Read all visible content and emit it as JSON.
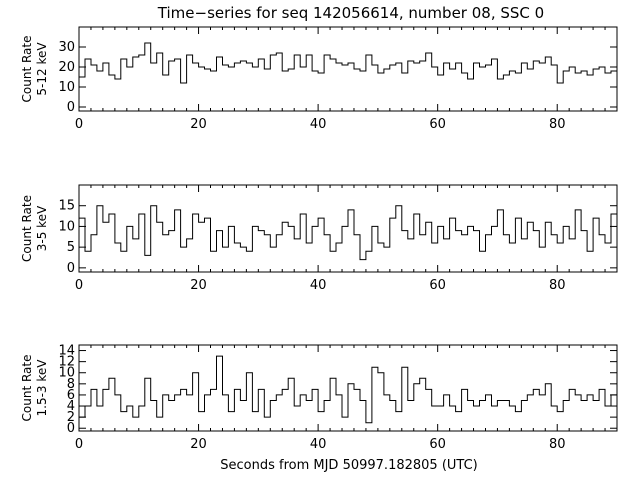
{
  "title": "Time−series for seq 142056614, number 08, SSC 0",
  "xlabel": "Seconds from MJD 50997.182805 (UTC)",
  "chart_data": [
    {
      "type": "line",
      "step": true,
      "title": "Time−series for seq 142056614, number 08, SSC 0",
      "ylabel_line1": "Count Rate",
      "ylabel_line2": "5-12 keV",
      "xlabel": "",
      "xlim": [
        0,
        90
      ],
      "ylim": [
        -2,
        40
      ],
      "xticks": [
        0,
        20,
        40,
        60,
        80
      ],
      "xtick_labels": [
        "0",
        "20",
        "40",
        "60",
        "80"
      ],
      "yticks": [
        0,
        10,
        20,
        30
      ],
      "ytick_labels": [
        "0",
        "10",
        "20",
        "30"
      ],
      "x": [
        0,
        1,
        2,
        3,
        4,
        5,
        6,
        7,
        8,
        9,
        10,
        11,
        12,
        13,
        14,
        15,
        16,
        17,
        18,
        19,
        20,
        21,
        22,
        23,
        24,
        25,
        26,
        27,
        28,
        29,
        30,
        31,
        32,
        33,
        34,
        35,
        36,
        37,
        38,
        39,
        40,
        41,
        42,
        43,
        44,
        45,
        46,
        47,
        48,
        49,
        50,
        51,
        52,
        53,
        54,
        55,
        56,
        57,
        58,
        59,
        60,
        61,
        62,
        63,
        64,
        65,
        66,
        67,
        68,
        69,
        70,
        71,
        72,
        73,
        74,
        75,
        76,
        77,
        78,
        79,
        80,
        81,
        82,
        83,
        84,
        85,
        86,
        87,
        88,
        89
      ],
      "values": [
        15,
        24,
        21,
        18,
        22,
        16,
        14,
        24,
        20,
        25,
        26,
        32,
        22,
        27,
        16,
        23,
        24,
        12,
        26,
        22,
        20,
        19,
        18,
        25,
        21,
        20,
        22,
        23,
        22,
        20,
        24,
        19,
        26,
        27,
        18,
        19,
        26,
        20,
        26,
        18,
        17,
        26,
        24,
        22,
        21,
        22,
        19,
        18,
        26,
        21,
        17,
        19,
        21,
        22,
        17,
        23,
        22,
        23,
        27,
        20,
        16,
        22,
        19,
        22,
        17,
        14,
        22,
        20,
        21,
        24,
        14,
        16,
        18,
        17,
        22,
        19,
        23,
        22,
        25,
        21,
        12,
        18,
        20,
        17,
        18,
        16,
        19,
        20,
        17,
        18
      ]
    },
    {
      "type": "line",
      "step": true,
      "title": "",
      "ylabel_line1": "Count Rate",
      "ylabel_line2": "3-5 keV",
      "xlabel": "",
      "xlim": [
        0,
        90
      ],
      "ylim": [
        -1,
        20
      ],
      "xticks": [
        0,
        20,
        40,
        60,
        80
      ],
      "xtick_labels": [
        "0",
        "20",
        "40",
        "60",
        "80"
      ],
      "yticks": [
        0,
        5,
        10,
        15
      ],
      "ytick_labels": [
        "0",
        "5",
        "10",
        "15"
      ],
      "x": [
        0,
        1,
        2,
        3,
        4,
        5,
        6,
        7,
        8,
        9,
        10,
        11,
        12,
        13,
        14,
        15,
        16,
        17,
        18,
        19,
        20,
        21,
        22,
        23,
        24,
        25,
        26,
        27,
        28,
        29,
        30,
        31,
        32,
        33,
        34,
        35,
        36,
        37,
        38,
        39,
        40,
        41,
        42,
        43,
        44,
        45,
        46,
        47,
        48,
        49,
        50,
        51,
        52,
        53,
        54,
        55,
        56,
        57,
        58,
        59,
        60,
        61,
        62,
        63,
        64,
        65,
        66,
        67,
        68,
        69,
        70,
        71,
        72,
        73,
        74,
        75,
        76,
        77,
        78,
        79,
        80,
        81,
        82,
        83,
        84,
        85,
        86,
        87,
        88,
        89
      ],
      "values": [
        12,
        4,
        8,
        15,
        11,
        13,
        6,
        4,
        10,
        7,
        13,
        3,
        15,
        11,
        8,
        9,
        14,
        5,
        7,
        13,
        11,
        12,
        4,
        9,
        5,
        10,
        6,
        5,
        4,
        10,
        9,
        8,
        5,
        8,
        11,
        10,
        7,
        13,
        6,
        10,
        12,
        8,
        4,
        6,
        10,
        14,
        8,
        2,
        4,
        10,
        6,
        5,
        12,
        15,
        9,
        7,
        13,
        8,
        11,
        6,
        10,
        7,
        12,
        9,
        8,
        10,
        9,
        4,
        8,
        10,
        14,
        8,
        6,
        12,
        7,
        11,
        9,
        5,
        11,
        8,
        6,
        10,
        7,
        14,
        9,
        4,
        12,
        8,
        6,
        13
      ]
    },
    {
      "type": "line",
      "step": true,
      "title": "",
      "ylabel_line1": "Count Rate",
      "ylabel_line2": "1.5-3 keV",
      "xlabel": "Seconds from MJD 50997.182805 (UTC)",
      "xlim": [
        0,
        90
      ],
      "ylim": [
        -0.5,
        15
      ],
      "xticks": [
        0,
        20,
        40,
        60,
        80
      ],
      "xtick_labels": [
        "0",
        "20",
        "40",
        "60",
        "80"
      ],
      "yticks": [
        0,
        2,
        4,
        6,
        8,
        10,
        12,
        14
      ],
      "ytick_labels": [
        "0",
        "2",
        "4",
        "6",
        "8",
        "10",
        "12",
        "14"
      ],
      "x": [
        0,
        1,
        2,
        3,
        4,
        5,
        6,
        7,
        8,
        9,
        10,
        11,
        12,
        13,
        14,
        15,
        16,
        17,
        18,
        19,
        20,
        21,
        22,
        23,
        24,
        25,
        26,
        27,
        28,
        29,
        30,
        31,
        32,
        33,
        34,
        35,
        36,
        37,
        38,
        39,
        40,
        41,
        42,
        43,
        44,
        45,
        46,
        47,
        48,
        49,
        50,
        51,
        52,
        53,
        54,
        55,
        56,
        57,
        58,
        59,
        60,
        61,
        62,
        63,
        64,
        65,
        66,
        67,
        68,
        69,
        70,
        71,
        72,
        73,
        74,
        75,
        76,
        77,
        78,
        79,
        80,
        81,
        82,
        83,
        84,
        85,
        86,
        87,
        88,
        89
      ],
      "values": [
        2,
        4,
        7,
        4,
        7,
        9,
        6,
        3,
        4,
        2,
        4,
        9,
        5,
        2,
        6,
        5,
        6,
        7,
        6,
        10,
        3,
        6,
        7,
        13,
        6,
        3,
        7,
        5,
        10,
        3,
        7,
        2,
        5,
        6,
        7,
        9,
        4,
        6,
        5,
        7,
        3,
        5,
        9,
        6,
        2,
        8,
        7,
        5,
        1,
        11,
        10,
        6,
        5,
        3,
        11,
        5,
        8,
        9,
        7,
        4,
        4,
        6,
        4,
        3,
        7,
        5,
        4,
        5,
        6,
        4,
        5,
        5,
        4,
        3,
        5,
        6,
        7,
        6,
        8,
        4,
        3,
        5,
        7,
        6,
        5,
        6,
        5,
        7,
        4,
        6
      ]
    }
  ]
}
